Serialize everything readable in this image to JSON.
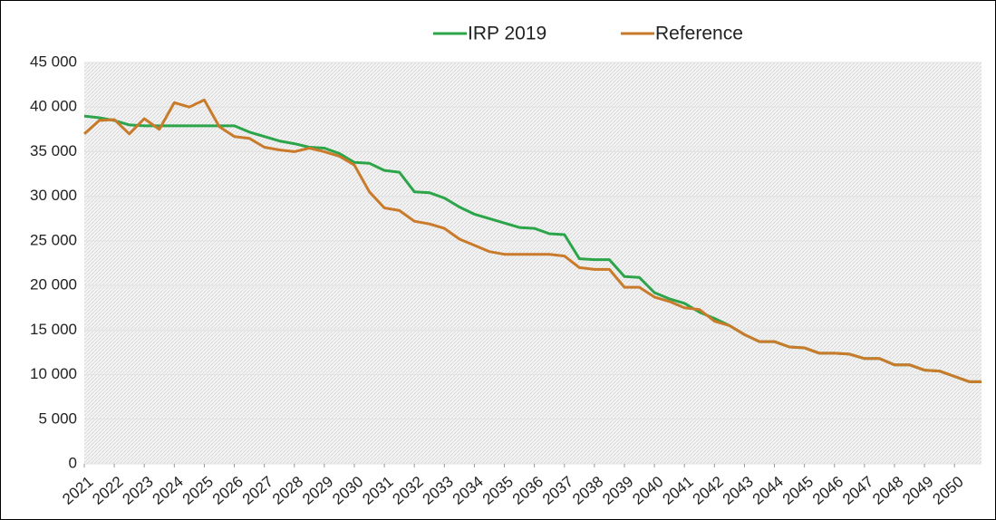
{
  "chart_data": {
    "type": "line",
    "x": [
      2021,
      2021.5,
      2022,
      2022.5,
      2023,
      2023.5,
      2024,
      2024.5,
      2025,
      2025.5,
      2026,
      2026.5,
      2027,
      2027.5,
      2028,
      2028.5,
      2029,
      2029.5,
      2030,
      2030.5,
      2031,
      2031.5,
      2032,
      2032.5,
      2033,
      2033.5,
      2034,
      2034.5,
      2035,
      2035.5,
      2036,
      2036.5,
      2037,
      2037.5,
      2038,
      2038.5,
      2039,
      2039.5,
      2040,
      2040.5,
      2041,
      2041.5,
      2042,
      2042.5,
      2043,
      2043.5,
      2044,
      2044.5,
      2045,
      2045.5,
      2046,
      2046.5,
      2047,
      2047.5,
      2048,
      2048.5,
      2049,
      2049.5,
      2050,
      2050.5,
      2050.9
    ],
    "series": [
      {
        "name": "IRP 2019",
        "color": "#2ca44a",
        "values": [
          39000,
          38800,
          38500,
          38000,
          37900,
          37900,
          37900,
          37900,
          37900,
          37900,
          37900,
          37200,
          36700,
          36200,
          35900,
          35500,
          35400,
          34800,
          33800,
          33700,
          32900,
          32700,
          30500,
          30400,
          29800,
          28800,
          28000,
          27500,
          27000,
          26500,
          26400,
          25800,
          25700,
          23000,
          22900,
          22900,
          21000,
          20900,
          19200,
          18500,
          18000,
          17000,
          16300,
          15500,
          14500,
          13700,
          13700,
          13100,
          13000,
          12400,
          12400,
          12300,
          11800,
          11800,
          11100,
          11100,
          10500,
          10400,
          9800,
          9200,
          9200
        ]
      },
      {
        "name": "Reference",
        "color": "#c97a2a",
        "values": [
          37000,
          38500,
          38600,
          37000,
          38700,
          37500,
          40500,
          40000,
          40800,
          37800,
          36700,
          36500,
          35500,
          35200,
          35000,
          35400,
          35000,
          34500,
          33500,
          30500,
          28700,
          28400,
          27200,
          26900,
          26400,
          25200,
          24500,
          23800,
          23500,
          23500,
          23500,
          23500,
          23300,
          22000,
          21800,
          21800,
          19800,
          19800,
          18700,
          18200,
          17500,
          17300,
          16000,
          15500,
          14500,
          13700,
          13700,
          13100,
          13000,
          12400,
          12400,
          12300,
          11800,
          11800,
          11100,
          11100,
          10500,
          10400,
          9800,
          9200,
          9200
        ]
      }
    ],
    "xlim": [
      2021,
      2050.9
    ],
    "xticks": [
      2021,
      2022,
      2023,
      2024,
      2025,
      2026,
      2027,
      2028,
      2029,
      2030,
      2031,
      2032,
      2033,
      2034,
      2035,
      2036,
      2037,
      2038,
      2039,
      2040,
      2041,
      2042,
      2043,
      2044,
      2045,
      2046,
      2047,
      2048,
      2049,
      2050
    ],
    "ylim": [
      0,
      45000
    ],
    "yticks": [
      0,
      {
        "value": 5000,
        "label": "5 000"
      },
      {
        "value": 10000,
        "label": "10 000"
      },
      {
        "value": 15000,
        "label": "15 000"
      },
      {
        "value": 20000,
        "label": "20 000"
      },
      {
        "value": 25000,
        "label": "25 000"
      },
      {
        "value": 30000,
        "label": "30 000"
      },
      {
        "value": 35000,
        "label": "35 000"
      },
      {
        "value": 40000,
        "label": "40 000"
      },
      {
        "value": 45000,
        "label": "45 000"
      }
    ],
    "legend": "top"
  }
}
